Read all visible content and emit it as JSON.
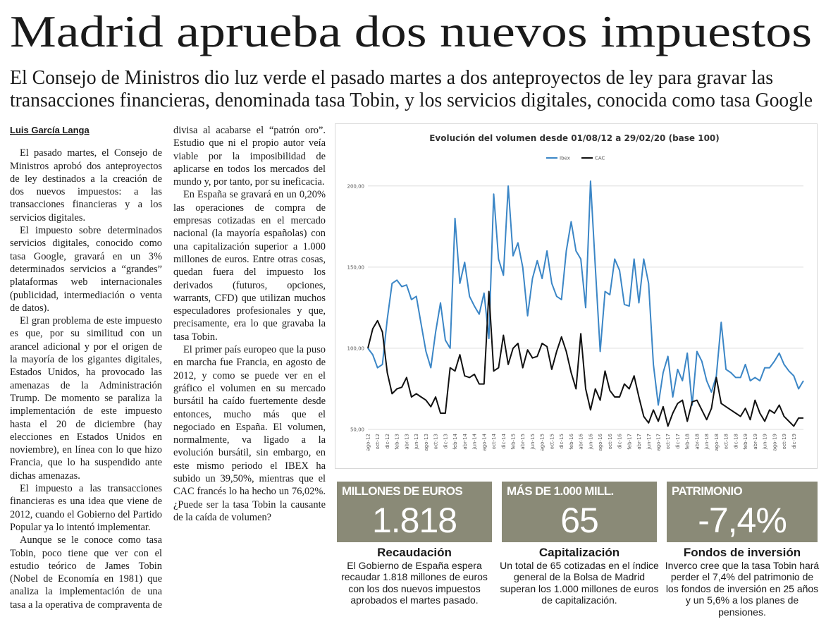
{
  "header": {
    "title": "Madrid aprueba dos nuevos impuestos",
    "subtitle_lines": [
      "El Consejo de Ministros dio luz verde el pasado martes a dos anteproyectos de ley para gravar las",
      "transacciones financieras, denominada tasa Tobin, y los servicios digitales, conocida como tasa Google"
    ]
  },
  "article": {
    "byline": "Luis García Langa",
    "paragraphs": [
      "El pasado martes, el Consejo de Ministros aprobó dos anteproyectos de ley destinados a la creación de dos nuevos impuestos: a las transacciones financieras y a los servicios digitales.",
      "El impuesto sobre determinados servicios digitales, conocido como tasa Google, gravará en un 3% determinados servicios a “grandes” plataformas web internacionales (publicidad, intermediación o venta de datos).",
      "El gran problema de este impuesto es que, por su similitud con un arancel adicional y por el origen de la mayoría de los gigantes digitales, Estados Unidos, ha provocado las amenazas de la Administración Trump. De momento se paraliza la implementación de este impuesto hasta el 20 de diciembre (hay elecciones en Estados Unidos en noviembre), en línea con lo que hizo Francia, que lo ha suspendido ante dichas amenazas.",
      "El impuesto a las transacciones financieras es una idea que viene de 2012, cuando el Gobierno del Partido Popular ya lo intentó implementar.",
      "Aunque se le conoce como tasa Tobin, poco tiene que ver con el estudio teórico de James Tobin (Nobel de Economía en 1981) que analiza la implementación de una tasa a la operativa de compraventa de divisa al acabarse el “patrón oro”. Estudio que ni el propio autor veía viable por la imposibilidad de aplicarse en todos los mercados del mundo y, por tanto, por su ineficacia.",
      "En España se gravará en un 0,20% las operaciones de compra de empresas cotizadas en el mercado nacional (la mayoría españolas) con una capitalización superior a 1.000 millones de euros. Entre otras cosas, quedan fuera del impuesto los derivados (futuros, opciones, warrants, CFD) que utilizan muchos especuladores profesionales y que, precisamente, era lo que gravaba la tasa Tobin.",
      "El primer país europeo que la puso en marcha fue Francia, en agosto de 2012, y como se puede ver en el gráfico el volumen en su mercado bursátil ha caído fuertemente desde entonces, mucho más que el negociado en España. El volumen, normalmente, va ligado a la evolución bursátil, sin embargo, en este mismo periodo el IBEX ha subido un 39,50%, mientras que el CAC francés lo ha hecho un 76,02%. ¿Puede ser la tasa Tobin la causante de la caída de volumen?"
    ]
  },
  "chart_data": {
    "type": "line",
    "title": "Evolución del volumen desde 01/08/12 a 29/02/20 (base 100)",
    "categories": [
      "ago-12",
      null,
      "oct-12",
      null,
      "dic-12",
      null,
      "feb-13",
      null,
      "abr-13",
      null,
      "jun-13",
      null,
      "ago-13",
      null,
      "oct-13",
      null,
      "dic-13",
      null,
      "feb-14",
      null,
      "abr-14",
      null,
      "jun-14",
      null,
      "ago-14",
      null,
      "oct-14",
      null,
      "dic-14",
      null,
      "feb-15",
      null,
      "abr-15",
      null,
      "jun-15",
      null,
      "ago-15",
      null,
      "oct-15",
      null,
      "dic-15",
      null,
      "feb-16",
      null,
      "abr-16",
      null,
      "jun-16",
      null,
      "ago-16",
      null,
      "oct-16",
      null,
      "dic-16",
      null,
      "feb-17",
      null,
      "abr-17",
      null,
      "jun-17",
      null,
      "ago-17",
      null,
      "oct-17",
      null,
      "dic-17",
      null,
      "feb-18",
      null,
      "abr-18",
      null,
      "jun-18",
      null,
      "ago-18",
      null,
      "oct-18",
      null,
      "dic-18",
      null,
      "feb-19",
      null,
      "abr-19",
      null,
      "jun-19",
      null,
      "ago-19",
      null,
      "oct-19",
      null,
      "dic-19",
      null,
      null
    ],
    "series": [
      {
        "name": "Ibex",
        "color": "#3b86c6",
        "values": [
          100,
          96,
          88,
          90,
          118,
          140,
          142,
          138,
          139,
          130,
          132,
          115,
          98,
          88,
          110,
          128,
          105,
          100,
          180,
          140,
          153,
          132,
          126,
          121,
          134,
          106,
          195,
          155,
          145,
          200,
          157,
          165,
          150,
          120,
          143,
          154,
          143,
          160,
          140,
          132,
          130,
          160,
          178,
          160,
          155,
          125,
          203,
          150,
          98,
          135,
          133,
          155,
          148,
          127,
          126,
          155,
          128,
          155,
          140,
          90,
          65,
          85,
          95,
          70,
          87,
          80,
          97,
          65,
          98,
          92,
          80,
          73,
          83,
          116,
          87,
          85,
          82,
          82,
          90,
          80,
          82,
          80,
          88,
          88,
          92,
          97,
          90,
          86,
          83,
          75,
          80
        ]
      },
      {
        "name": "CAC",
        "color": "#111111",
        "values": [
          100,
          112,
          117,
          110,
          85,
          72,
          75,
          76,
          82,
          70,
          72,
          70,
          68,
          64,
          70,
          60,
          60,
          88,
          86,
          96,
          83,
          82,
          84,
          78,
          78,
          135,
          86,
          88,
          108,
          90,
          100,
          103,
          88,
          99,
          94,
          95,
          103,
          101,
          87,
          98,
          107,
          98,
          85,
          75,
          109,
          75,
          62,
          75,
          68,
          86,
          74,
          70,
          70,
          78,
          75,
          83,
          70,
          58,
          54,
          62,
          55,
          64,
          52,
          60,
          66,
          68,
          55,
          67,
          68,
          62,
          56,
          63,
          82,
          66,
          64,
          62,
          60,
          58,
          63,
          56,
          68,
          60,
          55,
          62,
          60,
          65,
          58,
          55,
          52,
          57,
          57
        ]
      }
    ],
    "ylim": [
      50,
      206
    ],
    "yticks": [
      {
        "value": 50,
        "label": "50,00"
      },
      {
        "value": 100,
        "label": "100,00"
      },
      {
        "value": 150,
        "label": "150,00"
      },
      {
        "value": 200,
        "label": "200,00"
      }
    ],
    "grid": true
  },
  "stats": [
    {
      "label": "MILLONES DE EUROS",
      "number": "1.818",
      "title": "Recaudación",
      "text": "El Gobierno de España espera recaudar 1.818 millones de euros con los dos nuevos impuestos aprobados el martes pasado."
    },
    {
      "label": "MÁS DE 1.000 MILL.",
      "number": "65",
      "title": "Capitalización",
      "text": "Un total de 65 cotizadas en el índice general de la Bolsa de Madrid superan los 1.000 millones de euros de capitalización."
    },
    {
      "label": "PATRIMONIO",
      "number": "-7,4%",
      "title": "Fondos de inversión",
      "text": "Inverco cree que la tasa Tobin hará perder el 7,4% del patrimonio de los fondos de inversión en 25 años y un 5,6% a los planes de pensiones."
    }
  ]
}
